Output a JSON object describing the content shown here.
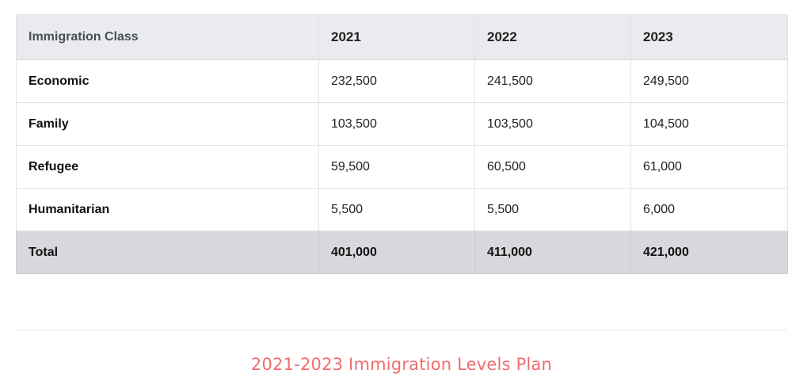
{
  "table": {
    "headers": [
      "Immigration Class",
      "2021",
      "2022",
      "2023"
    ],
    "rows": [
      {
        "label": "Economic",
        "values": [
          "232,500",
          "241,500",
          "249,500"
        ]
      },
      {
        "label": "Family",
        "values": [
          "103,500",
          "103,500",
          "104,500"
        ]
      },
      {
        "label": "Refugee",
        "values": [
          "59,500",
          "60,500",
          "61,000"
        ]
      },
      {
        "label": "Humanitarian",
        "values": [
          "5,500",
          "5,500",
          "6,000"
        ]
      }
    ],
    "total": {
      "label": "Total",
      "values": [
        "401,000",
        "411,000",
        "421,000"
      ]
    }
  },
  "caption": "2021-2023 Immigration Levels Plan",
  "colors": {
    "header_bg": "#e9ebee",
    "total_bg": "#d6d8dc",
    "caption": "#ef6d6d"
  }
}
